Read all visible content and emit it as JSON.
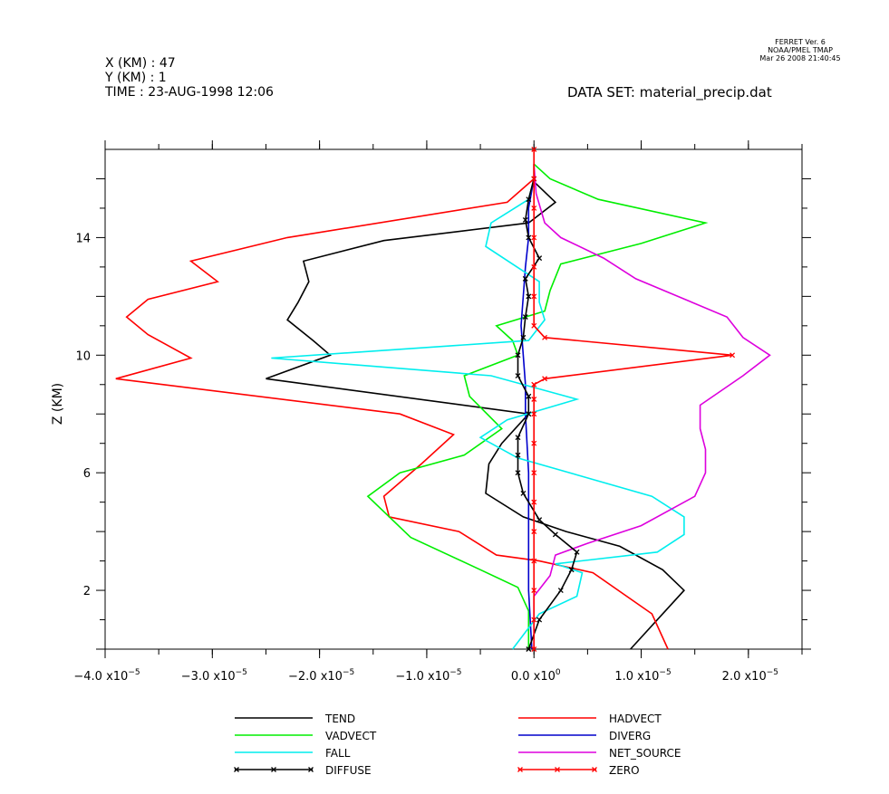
{
  "header": {
    "lines": [
      "X (KM) : 47",
      "Y (KM) : 1",
      "TIME : 23-AUG-1998 12:06"
    ],
    "dataset": "DATA SET: material_precip.dat",
    "ferret": [
      "FERRET Ver. 6",
      "NOAA/PMEL TMAP",
      "Mar 26 2008 21:40:45"
    ]
  },
  "chart_data": {
    "type": "line",
    "ylabel": "Z (KM)",
    "xlabel": "",
    "xlim": [
      -4e-05,
      2.5e-05
    ],
    "ylim": [
      0,
      17
    ],
    "y_ticks": [
      2,
      6,
      10,
      14
    ],
    "x_ticks": [
      {
        "v": -4e-05,
        "m": "−4.0",
        "e": "−5"
      },
      {
        "v": -3e-05,
        "m": "−3.0",
        "e": "−5"
      },
      {
        "v": -2e-05,
        "m": "−2.0",
        "e": "−5"
      },
      {
        "v": -1e-05,
        "m": "−1.0",
        "e": "−5"
      },
      {
        "v": 0,
        "m": "0.0",
        "e": "0"
      },
      {
        "v": 1e-05,
        "m": "1.0",
        "e": "−5"
      },
      {
        "v": 2e-05,
        "m": "2.0",
        "e": "−5"
      }
    ],
    "x_tick_base": "x10",
    "grid": false,
    "legend_position": "bottom",
    "series": [
      {
        "name": "TEND",
        "color": "#000000",
        "marker": false,
        "x": [
          9e-06,
          1.4e-05,
          1.2e-05,
          8e-06,
          3e-06,
          -1e-06,
          -4.5e-06,
          -4.2e-06,
          -3e-06,
          -5e-07,
          -2.5e-05,
          -1.9e-05,
          -2.06e-05,
          -2.3e-05,
          -2.2e-05,
          -2.1e-05,
          -2.15e-05,
          -1.4e-05,
          -5e-07,
          2e-06,
          0,
          0
        ],
        "y": [
          0,
          2,
          2.7,
          3.5,
          4.0,
          4.5,
          5.3,
          6.3,
          7.0,
          8.0,
          9.2,
          10.0,
          10.5,
          11.2,
          11.8,
          12.5,
          13.2,
          13.9,
          14.5,
          15.2,
          15.9,
          16.5
        ]
      },
      {
        "name": "HADVECT",
        "color": "#ff0000",
        "marker": false,
        "x": [
          1.25e-05,
          1.1e-05,
          5.5e-06,
          5e-07,
          -3.5e-06,
          -7e-06,
          -1.35e-05,
          -1.4e-05,
          -1.05e-05,
          -7.5e-06,
          -1.25e-05,
          -3.9e-05,
          -3.2e-05,
          -3.6e-05,
          -3.8e-05,
          -3.6e-05,
          -2.95e-05,
          -3.2e-05,
          -2.3e-05,
          -2.5e-06,
          0,
          0
        ],
        "y": [
          0,
          1.2,
          2.6,
          3.0,
          3.2,
          4.0,
          4.5,
          5.2,
          6.3,
          7.3,
          8.0,
          9.2,
          9.9,
          10.7,
          11.3,
          11.9,
          12.5,
          13.2,
          14.0,
          15.2,
          16.0,
          16.5
        ]
      },
      {
        "name": "VADVECT",
        "color": "#00ee00",
        "marker": false,
        "x": [
          -5e-07,
          -5e-07,
          -1.5e-06,
          -5e-06,
          -1.15e-05,
          -1.55e-05,
          -1.25e-05,
          -6.5e-06,
          -3e-06,
          -6e-06,
          -6.5e-06,
          -1.5e-06,
          -2e-06,
          -3.5e-06,
          1e-06,
          1.5e-06,
          2.5e-06,
          1e-05,
          1.6e-05,
          6e-06,
          1.5e-06,
          0
        ],
        "y": [
          0,
          1.3,
          2.1,
          2.7,
          3.8,
          5.2,
          6.0,
          6.6,
          7.5,
          8.6,
          9.3,
          10.0,
          10.5,
          11.0,
          11.5,
          12.2,
          13.1,
          13.8,
          14.5,
          15.3,
          16.0,
          16.5
        ]
      },
      {
        "name": "DIVERG",
        "color": "#0000cc",
        "marker": false,
        "x": [
          -2e-07,
          -5e-07,
          -5e-07,
          -5e-07,
          -8e-07,
          -8e-07,
          -1e-06,
          -1.2e-06,
          -1e-06,
          -8e-07,
          -5e-07,
          -5e-07,
          0
        ],
        "y": [
          0,
          2,
          4,
          6,
          8,
          9,
          10,
          11,
          12,
          13,
          14,
          15,
          16
        ]
      },
      {
        "name": "FALL",
        "color": "#00eeee",
        "marker": false,
        "x": [
          -2e-06,
          5e-07,
          4e-06,
          4.5e-06,
          2e-06,
          1.15e-05,
          1.4e-05,
          1.4e-05,
          1.1e-05,
          -1.5e-06,
          -5e-06,
          -2.5e-06,
          4e-06,
          -4e-06,
          -2.45e-05,
          -5e-07,
          1e-06,
          5e-07,
          5e-07,
          -4.5e-06,
          -4e-06,
          -5e-07,
          0
        ],
        "y": [
          0,
          1.2,
          1.8,
          2.6,
          2.9,
          3.3,
          3.9,
          4.5,
          5.2,
          6.5,
          7.2,
          7.8,
          8.5,
          9.3,
          9.9,
          10.5,
          11.2,
          11.8,
          12.5,
          13.7,
          14.5,
          15.3,
          16.0
        ]
      },
      {
        "name": "NET_SOURCE",
        "color": "#dd00dd",
        "marker": false,
        "x": [
          0,
          0,
          1.5e-06,
          2e-06,
          5e-06,
          1e-05,
          1.5e-05,
          1.6e-05,
          1.6e-05,
          1.55e-05,
          1.55e-05,
          1.95e-05,
          2.2e-05,
          1.95e-05,
          1.8e-05,
          9.5e-06,
          6.5e-06,
          2.5e-06,
          1e-06,
          2e-07,
          0
        ],
        "y": [
          0,
          1.8,
          2.5,
          3.2,
          3.6,
          4.2,
          5.2,
          6.0,
          6.8,
          7.5,
          8.3,
          9.3,
          10.0,
          10.6,
          11.3,
          12.6,
          13.3,
          14.0,
          14.5,
          15.5,
          16.5
        ]
      },
      {
        "name": "DIFFUSE",
        "color": "#000000",
        "marker": true,
        "x": [
          -5e-07,
          5e-07,
          2.5e-06,
          3.5e-06,
          4e-06,
          2e-06,
          5e-07,
          -1e-06,
          -1.5e-06,
          -1.5e-06,
          -1.5e-06,
          -5e-07,
          -5e-07,
          -1.5e-06,
          -1.5e-06,
          -1e-06,
          -8e-07,
          -5e-07,
          -8e-07,
          5e-07,
          -5e-07,
          -8e-07,
          -5e-07,
          0
        ],
        "y": [
          0,
          1,
          2,
          2.7,
          3.3,
          3.9,
          4.4,
          5.3,
          6.0,
          6.6,
          7.2,
          8.0,
          8.6,
          9.3,
          10.0,
          10.6,
          11.3,
          12.0,
          12.6,
          13.3,
          14.0,
          14.6,
          15.3,
          16.0
        ]
      },
      {
        "name": "ZERO",
        "color": "#ff0000",
        "marker": true,
        "x": [
          0,
          0,
          0,
          0,
          0,
          0,
          0,
          0,
          0,
          0,
          0,
          1e-06,
          1.85e-05,
          1e-06,
          0,
          0,
          0,
          0,
          0,
          0,
          0
        ],
        "y": [
          0,
          1,
          2,
          3,
          4,
          5,
          6,
          7,
          8,
          8.5,
          9.0,
          9.2,
          10.0,
          10.6,
          11,
          12,
          13,
          14,
          15,
          16,
          17
        ]
      }
    ]
  }
}
